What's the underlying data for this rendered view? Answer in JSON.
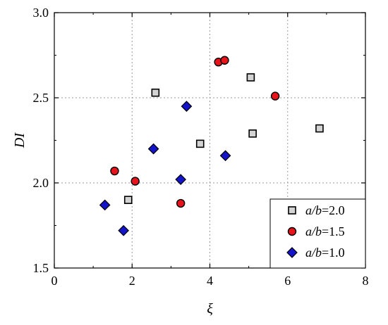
{
  "chart_data": {
    "type": "scatter",
    "title": "",
    "xlabel": "ξ",
    "ylabel": "DI",
    "xlim": [
      0,
      8
    ],
    "ylim": [
      1.5,
      3.0
    ],
    "xticks": [
      "0",
      "2",
      "4",
      "6",
      "8"
    ],
    "yticks": [
      "1.5",
      "2.0",
      "2.5",
      "3.0"
    ],
    "grid": true,
    "legend_position": "bottom-right",
    "series": [
      {
        "name_var": "a/b",
        "name_value": "=2.0",
        "marker": "square",
        "fill": "#d3d3d3",
        "points": [
          {
            "x": 1.9,
            "y": 1.9
          },
          {
            "x": 2.6,
            "y": 2.53
          },
          {
            "x": 3.75,
            "y": 2.23
          },
          {
            "x": 5.05,
            "y": 2.62
          },
          {
            "x": 5.1,
            "y": 2.29
          },
          {
            "x": 6.82,
            "y": 2.32
          }
        ]
      },
      {
        "name_var": "a/b",
        "name_value": "=1.5",
        "marker": "circle",
        "fill": "#e8141b",
        "points": [
          {
            "x": 1.55,
            "y": 2.07
          },
          {
            "x": 2.08,
            "y": 2.01
          },
          {
            "x": 3.25,
            "y": 1.88
          },
          {
            "x": 4.22,
            "y": 2.71
          },
          {
            "x": 4.38,
            "y": 2.72
          },
          {
            "x": 5.68,
            "y": 2.51
          }
        ]
      },
      {
        "name_var": "a/b",
        "name_value": "=1.0",
        "marker": "diamond",
        "fill": "#1414c8",
        "points": [
          {
            "x": 1.3,
            "y": 1.87
          },
          {
            "x": 1.78,
            "y": 1.72
          },
          {
            "x": 2.55,
            "y": 2.2
          },
          {
            "x": 3.25,
            "y": 2.02
          },
          {
            "x": 3.4,
            "y": 2.45
          },
          {
            "x": 4.4,
            "y": 2.16
          }
        ]
      }
    ]
  }
}
